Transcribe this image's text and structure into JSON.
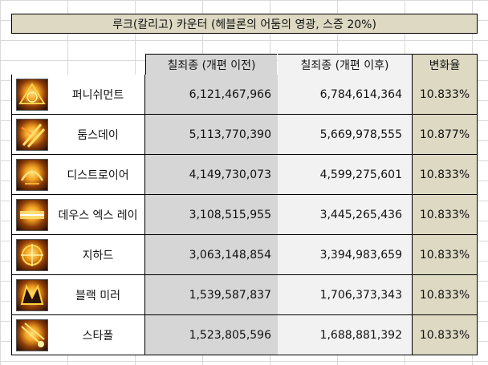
{
  "title": "루크(칼리고) 카운터 (헤블론의 어둠의 영광, 스증 20%)",
  "headers": {
    "pre": "칠죄종 (개편 이전)",
    "post": "칠죄종 (개편 이후)",
    "rate": "변화율"
  },
  "rows": [
    {
      "name": "퍼니쉬먼트",
      "icon": "punishment-skill-icon",
      "pre": "6,121,467,966",
      "post": "6,784,614,364",
      "rate": "10.833%"
    },
    {
      "name": "둠스데이",
      "icon": "doomsday-skill-icon",
      "pre": "5,113,770,390",
      "post": "5,669,978,555",
      "rate": "10.877%"
    },
    {
      "name": "디스트로이어",
      "icon": "destroyer-skill-icon",
      "pre": "4,149,730,073",
      "post": "4,599,275,601",
      "rate": "10.833%"
    },
    {
      "name": "데우스 엑스 레이",
      "icon": "deus-ex-ray-skill-icon",
      "pre": "3,108,515,955",
      "post": "3,445,265,436",
      "rate": "10.833%"
    },
    {
      "name": "지하드",
      "icon": "jihad-skill-icon",
      "pre": "3,063,148,854",
      "post": "3,394,983,659",
      "rate": "10.833%"
    },
    {
      "name": "블랙 미러",
      "icon": "black-mirror-skill-icon",
      "pre": "1,539,587,837",
      "post": "1,706,373,343",
      "rate": "10.833%"
    },
    {
      "name": "스타폴",
      "icon": "starfall-skill-icon",
      "pre": "1,523,805,596",
      "post": "1,688,881,392",
      "rate": "10.833%"
    }
  ],
  "colors": {
    "title_bg": "#ddd9c3",
    "pre_bg": "#d6d6d6",
    "post_bg": "#f2f2f2",
    "rate_bg": "#ddd9c3"
  }
}
